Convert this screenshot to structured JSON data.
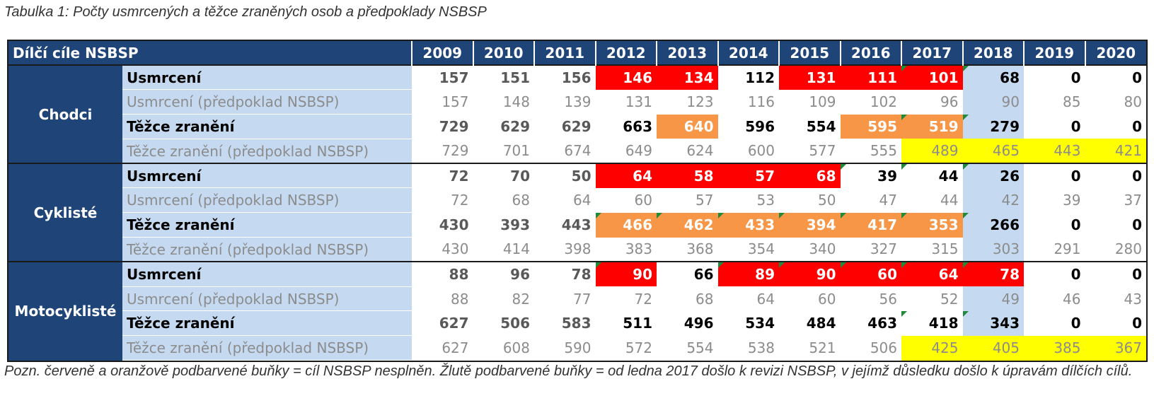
{
  "caption": "Tabulka 1: Počty usmrcených a těžce zraněných osob a předpoklady NSBSP",
  "header": {
    "title": "Dílčí cíle NSBSP",
    "years": [
      "2009",
      "2010",
      "2011",
      "2012",
      "2013",
      "2014",
      "2015",
      "2016",
      "2017",
      "2018",
      "2019",
      "2020"
    ]
  },
  "colors": {
    "header_blue": "#1f4478",
    "label_blue": "#c5d9f1",
    "red": "#ff0000",
    "orange": "#f79646",
    "yellow": "#ffff00"
  },
  "groups": [
    {
      "name": "Chodci",
      "rows": [
        {
          "label": "Usmrcení",
          "kind": "actual",
          "values": [
            "157",
            "151",
            "156",
            "146",
            "134",
            "112",
            "131",
            "111",
            "101",
            "68",
            "0",
            "0"
          ],
          "fills": [
            "",
            "",
            "",
            "red",
            "red",
            "",
            "red",
            "red",
            "red",
            "blue",
            "",
            ""
          ],
          "flags": [
            false,
            false,
            false,
            false,
            false,
            false,
            false,
            false,
            true,
            true,
            false,
            false
          ]
        },
        {
          "label": "Usmrcení (předpoklad NSBSP)",
          "kind": "pred",
          "values": [
            "157",
            "148",
            "139",
            "131",
            "123",
            "116",
            "109",
            "102",
            "96",
            "90",
            "85",
            "80"
          ],
          "fills": [
            "",
            "",
            "",
            "",
            "",
            "",
            "",
            "",
            "",
            "blue",
            "",
            ""
          ],
          "flags": [
            false,
            false,
            false,
            false,
            false,
            false,
            false,
            false,
            false,
            false,
            false,
            false
          ]
        },
        {
          "label": "Těžce zranění",
          "kind": "actual",
          "values": [
            "729",
            "629",
            "629",
            "663",
            "640",
            "596",
            "554",
            "595",
            "519",
            "279",
            "0",
            "0"
          ],
          "fills": [
            "",
            "",
            "",
            "",
            "orange",
            "",
            "",
            "orange",
            "orange",
            "blue",
            "",
            ""
          ],
          "flags": [
            false,
            false,
            false,
            false,
            false,
            false,
            false,
            false,
            true,
            true,
            false,
            false
          ]
        },
        {
          "label": "Těžce zranění (předpoklad NSBSP)",
          "kind": "pred",
          "values": [
            "729",
            "701",
            "674",
            "649",
            "624",
            "600",
            "577",
            "555",
            "489",
            "465",
            "443",
            "421"
          ],
          "fills": [
            "",
            "",
            "",
            "",
            "",
            "",
            "",
            "",
            "yellow",
            "yellow",
            "yellow",
            "yellow"
          ],
          "flags": [
            false,
            false,
            false,
            false,
            false,
            false,
            false,
            false,
            false,
            false,
            false,
            false
          ]
        }
      ]
    },
    {
      "name": "Cyklisté",
      "rows": [
        {
          "label": "Usmrcení",
          "kind": "actual",
          "values": [
            "72",
            "70",
            "50",
            "64",
            "58",
            "57",
            "68",
            "39",
            "44",
            "26",
            "0",
            "0"
          ],
          "fills": [
            "",
            "",
            "",
            "red",
            "red",
            "red",
            "red",
            "",
            "",
            "blue",
            "",
            ""
          ],
          "flags": [
            false,
            false,
            false,
            false,
            false,
            false,
            false,
            true,
            true,
            true,
            false,
            false
          ]
        },
        {
          "label": "Usmrcení (předpoklad NSBSP)",
          "kind": "pred",
          "values": [
            "72",
            "68",
            "64",
            "60",
            "57",
            "53",
            "50",
            "47",
            "44",
            "42",
            "39",
            "37"
          ],
          "fills": [
            "",
            "",
            "",
            "",
            "",
            "",
            "",
            "",
            "",
            "blue",
            "",
            ""
          ],
          "flags": [
            false,
            false,
            false,
            false,
            false,
            false,
            false,
            false,
            false,
            false,
            false,
            false
          ]
        },
        {
          "label": "Těžce zranění",
          "kind": "actual",
          "values": [
            "430",
            "393",
            "443",
            "466",
            "462",
            "433",
            "394",
            "417",
            "353",
            "266",
            "0",
            "0"
          ],
          "fills": [
            "",
            "",
            "",
            "orange",
            "orange",
            "orange",
            "orange",
            "orange",
            "orange",
            "blue",
            "",
            ""
          ],
          "flags": [
            false,
            false,
            false,
            true,
            true,
            true,
            true,
            true,
            true,
            true,
            false,
            false
          ]
        },
        {
          "label": "Těžce zranění (předpoklad NSBSP)",
          "kind": "pred",
          "values": [
            "430",
            "414",
            "398",
            "383",
            "368",
            "354",
            "340",
            "327",
            "315",
            "303",
            "291",
            "280"
          ],
          "fills": [
            "",
            "",
            "",
            "",
            "",
            "",
            "",
            "",
            "",
            "blue",
            "",
            ""
          ],
          "flags": [
            false,
            false,
            false,
            false,
            false,
            false,
            false,
            false,
            false,
            false,
            false,
            false
          ]
        }
      ]
    },
    {
      "name": "Motocyklisté",
      "rows": [
        {
          "label": "Usmrcení",
          "kind": "actual",
          "values": [
            "88",
            "96",
            "78",
            "90",
            "66",
            "89",
            "90",
            "60",
            "64",
            "78",
            "0",
            "0"
          ],
          "fills": [
            "",
            "",
            "",
            "red",
            "",
            "red",
            "red",
            "red",
            "red",
            "red",
            "",
            ""
          ],
          "flags": [
            false,
            false,
            false,
            true,
            false,
            true,
            true,
            true,
            true,
            true,
            false,
            false
          ]
        },
        {
          "label": "Usmrcení (předpoklad NSBSP)",
          "kind": "pred",
          "values": [
            "88",
            "82",
            "77",
            "72",
            "68",
            "64",
            "60",
            "56",
            "52",
            "49",
            "46",
            "43"
          ],
          "fills": [
            "",
            "",
            "",
            "",
            "",
            "",
            "",
            "",
            "",
            "blue",
            "",
            ""
          ],
          "flags": [
            false,
            false,
            false,
            false,
            false,
            false,
            false,
            false,
            false,
            false,
            false,
            false
          ]
        },
        {
          "label": "Těžce zranění",
          "kind": "actual",
          "values": [
            "627",
            "506",
            "583",
            "511",
            "496",
            "534",
            "484",
            "463",
            "418",
            "343",
            "0",
            "0"
          ],
          "fills": [
            "",
            "",
            "",
            "",
            "",
            "",
            "",
            "",
            "",
            "blue",
            "",
            ""
          ],
          "flags": [
            false,
            false,
            false,
            false,
            false,
            false,
            false,
            false,
            true,
            true,
            false,
            false
          ]
        },
        {
          "label": "Těžce zranění (předpoklad NSBSP)",
          "kind": "pred",
          "values": [
            "627",
            "608",
            "590",
            "572",
            "554",
            "538",
            "521",
            "506",
            "425",
            "405",
            "385",
            "367"
          ],
          "fills": [
            "",
            "",
            "",
            "",
            "",
            "",
            "",
            "",
            "yellow",
            "yellow",
            "yellow",
            "yellow"
          ],
          "flags": [
            false,
            false,
            false,
            false,
            false,
            false,
            false,
            false,
            false,
            false,
            false,
            false
          ]
        }
      ]
    }
  ],
  "note": "Pozn. červeně a oranžově podbarvené buňky = cíl NSBSP nesplněn. Žlutě podbarvené buňky = od ledna 2017 došlo k revizi NSBSP, v jejímž důsledku došlo k úpravám dílčích cílů."
}
